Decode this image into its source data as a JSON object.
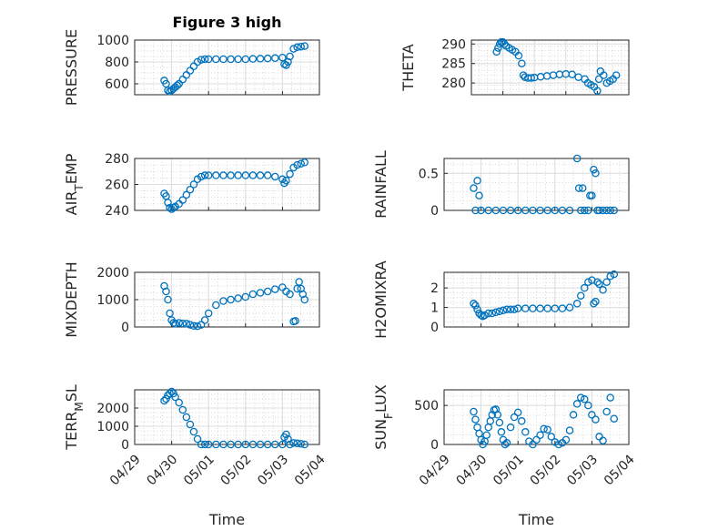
{
  "figure_title": "Figure 3 high",
  "x_axis_label": "Time",
  "x_tick_labels": [
    "04/29",
    "04/30",
    "05/01",
    "05/02",
    "05/03",
    "05/04"
  ],
  "marker_color": "#0072BD",
  "chart_data": [
    {
      "type": "scatter",
      "title": "Figure 3 high",
      "ylabel": "PRESSURE",
      "ylabel_parts": [
        [
          "PRESSURE",
          ""
        ]
      ],
      "xlabel": "",
      "ylim": [
        500,
        1000
      ],
      "yticks": [
        600,
        800,
        1000
      ],
      "xlim": [
        0,
        5
      ],
      "x": [
        0.8,
        0.85,
        0.9,
        0.95,
        1.0,
        1.05,
        1.1,
        1.15,
        1.2,
        1.3,
        1.4,
        1.5,
        1.6,
        1.7,
        1.8,
        1.9,
        2.0,
        2.2,
        2.4,
        2.6,
        2.8,
        3.0,
        3.2,
        3.4,
        3.6,
        3.8,
        4.0,
        4.05,
        4.1,
        4.15,
        4.2,
        4.3,
        4.4,
        4.5,
        4.6
      ],
      "y": [
        630,
        600,
        540,
        530,
        540,
        555,
        570,
        585,
        600,
        640,
        680,
        720,
        760,
        800,
        820,
        825,
        825,
        825,
        825,
        825,
        825,
        825,
        828,
        830,
        832,
        835,
        840,
        780,
        770,
        800,
        850,
        920,
        935,
        940,
        945
      ]
    },
    {
      "type": "scatter",
      "title": "",
      "ylabel": "THETA",
      "ylabel_parts": [
        [
          "THETA",
          ""
        ]
      ],
      "xlabel": "",
      "ylim": [
        277,
        291
      ],
      "yticks": [
        280,
        285,
        290
      ],
      "xlim": [
        0,
        5
      ],
      "x": [
        0.8,
        0.85,
        0.9,
        0.95,
        1.0,
        1.05,
        1.1,
        1.2,
        1.3,
        1.4,
        1.5,
        1.6,
        1.65,
        1.7,
        1.8,
        1.9,
        2.0,
        2.2,
        2.4,
        2.6,
        2.8,
        3.0,
        3.2,
        3.4,
        3.6,
        3.7,
        3.8,
        3.9,
        4.0,
        4.05,
        4.1,
        4.2,
        4.3,
        4.4,
        4.5,
        4.6
      ],
      "y": [
        288,
        289,
        290,
        290.5,
        290.5,
        290,
        289.5,
        289,
        288.5,
        288,
        287,
        285,
        282,
        281.5,
        281.3,
        281.3,
        281.4,
        281.6,
        281.8,
        282,
        282.2,
        282.3,
        282.2,
        281.5,
        281,
        280,
        279.5,
        279,
        278,
        281,
        283,
        282,
        280,
        280.5,
        281,
        282
      ]
    },
    {
      "type": "scatter",
      "title": "",
      "ylabel": "AIR_TEMP",
      "ylabel_parts": [
        [
          "AIR",
          ""
        ],
        [
          "T",
          "sub"
        ],
        [
          "EMP",
          ""
        ]
      ],
      "xlabel": "",
      "ylim": [
        240,
        280
      ],
      "yticks": [
        240,
        260,
        280
      ],
      "xlim": [
        0,
        5
      ],
      "x": [
        0.8,
        0.85,
        0.9,
        0.95,
        1.0,
        1.05,
        1.1,
        1.2,
        1.3,
        1.4,
        1.5,
        1.6,
        1.7,
        1.8,
        1.9,
        2.0,
        2.2,
        2.4,
        2.6,
        2.8,
        3.0,
        3.2,
        3.4,
        3.6,
        3.8,
        4.0,
        4.05,
        4.1,
        4.2,
        4.3,
        4.4,
        4.5,
        4.6
      ],
      "y": [
        253,
        251,
        246,
        242,
        241,
        242,
        243,
        245,
        248,
        252,
        256,
        260,
        264,
        266,
        267,
        267,
        267,
        267,
        267,
        267,
        267,
        267,
        267,
        267,
        266,
        264,
        261,
        263,
        268,
        273,
        275,
        276,
        277
      ]
    },
    {
      "type": "scatter",
      "title": "",
      "ylabel": "RAINFALL",
      "ylabel_parts": [
        [
          "RAINFALL",
          ""
        ]
      ],
      "xlabel": "",
      "ylim": [
        0,
        0.7
      ],
      "yticks": [
        0,
        0.5
      ],
      "xlim": [
        0,
        5
      ],
      "x": [
        0.8,
        0.85,
        0.9,
        0.95,
        1.0,
        1.2,
        1.4,
        1.6,
        1.8,
        2.0,
        2.2,
        2.4,
        2.6,
        2.8,
        3.0,
        3.2,
        3.4,
        3.6,
        3.65,
        3.7,
        3.75,
        3.8,
        3.9,
        3.95,
        4.0,
        4.05,
        4.1,
        4.15,
        4.2,
        4.3,
        4.4,
        4.5,
        4.6
      ],
      "y": [
        0.3,
        0,
        0.4,
        0.2,
        0,
        0,
        0,
        0,
        0,
        0,
        0,
        0,
        0,
        0,
        0,
        0,
        0,
        0.7,
        0.3,
        0,
        0.3,
        0,
        0,
        0.2,
        0.2,
        0.55,
        0.5,
        0,
        0,
        0,
        0,
        0,
        0
      ]
    },
    {
      "type": "scatter",
      "title": "",
      "ylabel": "MIXDEPTH",
      "ylabel_parts": [
        [
          "MIXDEPTH",
          ""
        ]
      ],
      "xlabel": "",
      "ylim": [
        0,
        2000
      ],
      "yticks": [
        0,
        1000,
        2000
      ],
      "xlim": [
        0,
        5
      ],
      "x": [
        0.8,
        0.85,
        0.9,
        0.95,
        1.0,
        1.05,
        1.1,
        1.2,
        1.3,
        1.4,
        1.5,
        1.6,
        1.7,
        1.8,
        1.9,
        2.0,
        2.2,
        2.4,
        2.6,
        2.8,
        3.0,
        3.2,
        3.4,
        3.6,
        3.8,
        4.0,
        4.1,
        4.2,
        4.3,
        4.35,
        4.4,
        4.45,
        4.5,
        4.55,
        4.6
      ],
      "y": [
        1500,
        1300,
        1000,
        500,
        250,
        150,
        120,
        150,
        130,
        120,
        80,
        40,
        30,
        80,
        250,
        500,
        800,
        950,
        1000,
        1050,
        1100,
        1200,
        1250,
        1300,
        1380,
        1450,
        1300,
        1200,
        200,
        220,
        1400,
        1650,
        1400,
        1200,
        1000
      ]
    },
    {
      "type": "scatter",
      "title": "",
      "ylabel": "H2OMIXRA",
      "ylabel_parts": [
        [
          "H2OMIXRA",
          ""
        ]
      ],
      "xlabel": "",
      "ylim": [
        0,
        2.8
      ],
      "yticks": [
        0,
        1,
        2
      ],
      "xlim": [
        0,
        5
      ],
      "x": [
        0.8,
        0.85,
        0.9,
        0.95,
        1.0,
        1.05,
        1.1,
        1.2,
        1.3,
        1.4,
        1.5,
        1.6,
        1.7,
        1.8,
        1.9,
        2.0,
        2.2,
        2.4,
        2.6,
        2.8,
        3.0,
        3.2,
        3.4,
        3.6,
        3.7,
        3.8,
        3.9,
        4.0,
        4.05,
        4.1,
        4.15,
        4.2,
        4.3,
        4.4,
        4.5,
        4.6
      ],
      "y": [
        1.2,
        1.1,
        0.9,
        0.7,
        0.6,
        0.55,
        0.6,
        0.7,
        0.7,
        0.75,
        0.8,
        0.85,
        0.9,
        0.9,
        0.9,
        0.95,
        0.95,
        0.95,
        0.95,
        0.95,
        0.95,
        0.95,
        1.0,
        1.2,
        1.6,
        2.0,
        2.3,
        2.4,
        1.2,
        1.3,
        2.3,
        2.2,
        1.9,
        2.3,
        2.6,
        2.7
      ]
    },
    {
      "type": "scatter",
      "title": "",
      "ylabel": "TERR_MSL",
      "ylabel_parts": [
        [
          "TERR",
          ""
        ],
        [
          "M",
          "sub"
        ],
        [
          "SL",
          ""
        ]
      ],
      "xlabel": "Time",
      "ylim": [
        0,
        3000
      ],
      "yticks": [
        0,
        1000,
        2000
      ],
      "xlim": [
        0,
        5
      ],
      "x": [
        0.8,
        0.85,
        0.9,
        0.95,
        1.0,
        1.05,
        1.1,
        1.2,
        1.3,
        1.4,
        1.5,
        1.6,
        1.7,
        1.8,
        1.9,
        2.0,
        2.2,
        2.4,
        2.6,
        2.8,
        3.0,
        3.2,
        3.4,
        3.6,
        3.8,
        4.0,
        4.05,
        4.1,
        4.15,
        4.2,
        4.3,
        4.4,
        4.5,
        4.6
      ],
      "y": [
        2400,
        2500,
        2700,
        2800,
        2900,
        2800,
        2600,
        2300,
        1900,
        1500,
        1100,
        700,
        300,
        0,
        0,
        0,
        0,
        0,
        0,
        0,
        0,
        0,
        0,
        0,
        0,
        0,
        400,
        550,
        300,
        0,
        80,
        60,
        40,
        0
      ]
    },
    {
      "type": "scatter",
      "title": "",
      "ylabel": "SUN_FLUX",
      "ylabel_parts": [
        [
          "SUN",
          ""
        ],
        [
          "F",
          "sub"
        ],
        [
          "LUX",
          ""
        ]
      ],
      "xlabel": "Time",
      "ylim": [
        0,
        700
      ],
      "yticks": [
        0,
        500
      ],
      "xlim": [
        0,
        5
      ],
      "x": [
        0.8,
        0.85,
        0.9,
        0.95,
        1.0,
        1.05,
        1.1,
        1.15,
        1.2,
        1.25,
        1.3,
        1.35,
        1.4,
        1.45,
        1.5,
        1.55,
        1.6,
        1.65,
        1.7,
        1.8,
        1.9,
        2.0,
        2.1,
        2.2,
        2.3,
        2.4,
        2.5,
        2.6,
        2.7,
        2.8,
        2.9,
        3.0,
        3.1,
        3.2,
        3.3,
        3.4,
        3.5,
        3.6,
        3.7,
        3.8,
        3.9,
        4.0,
        4.1,
        4.2,
        4.3,
        4.4,
        4.5,
        4.6
      ],
      "y": [
        420,
        320,
        220,
        140,
        60,
        0,
        40,
        120,
        220,
        300,
        380,
        440,
        450,
        380,
        280,
        160,
        60,
        0,
        20,
        220,
        350,
        410,
        300,
        160,
        40,
        0,
        60,
        120,
        200,
        190,
        100,
        30,
        0,
        20,
        60,
        180,
        380,
        520,
        600,
        580,
        500,
        380,
        320,
        100,
        50,
        420,
        600,
        330
      ]
    }
  ]
}
